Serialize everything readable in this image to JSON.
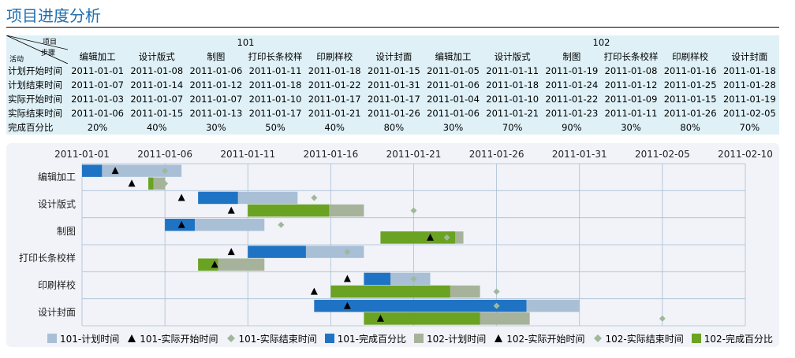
{
  "title": "项目进度分析",
  "table": {
    "corner": {
      "top": "项目",
      "mid": "步骤",
      "bottom": "活动"
    },
    "groups": [
      "101",
      "102"
    ],
    "steps": [
      "编辑加工",
      "设计版式",
      "制图",
      "打印长条校样",
      "印刷样校",
      "设计封面"
    ],
    "rows": [
      {
        "label": "计划开始时间",
        "values": [
          "2011-01-01",
          "2011-01-08",
          "2011-01-06",
          "2011-01-11",
          "2011-01-18",
          "2011-01-15",
          "2011-01-05",
          "2011-01-11",
          "2011-01-19",
          "2011-01-08",
          "2011-01-16",
          "2011-01-18"
        ]
      },
      {
        "label": "计划结束时间",
        "values": [
          "2011-01-07",
          "2011-01-14",
          "2011-01-12",
          "2011-01-18",
          "2011-01-22",
          "2011-01-31",
          "2011-01-06",
          "2011-01-18",
          "2011-01-24",
          "2011-01-12",
          "2011-01-25",
          "2011-01-28"
        ]
      },
      {
        "label": "实际开始时间",
        "values": [
          "2011-01-03",
          "2011-01-07",
          "2011-01-07",
          "2011-01-10",
          "2011-01-17",
          "2011-01-17",
          "2011-01-04",
          "2011-01-10",
          "2011-01-22",
          "2011-01-09",
          "2011-01-15",
          "2011-01-19"
        ]
      },
      {
        "label": "实际结束时间",
        "values": [
          "2011-01-06",
          "2011-01-15",
          "2011-01-13",
          "2011-01-17",
          "2011-01-21",
          "2011-01-26",
          "2011-01-06",
          "2011-01-21",
          "2011-01-23",
          "2011-01-11",
          "2011-01-26",
          "2011-02-05"
        ]
      },
      {
        "label": "完成百分比",
        "values": [
          "20%",
          "40%",
          "30%",
          "50%",
          "40%",
          "80%",
          "30%",
          "70%",
          "90%",
          "30%",
          "80%",
          "70%"
        ]
      }
    ]
  },
  "chart_data": {
    "type": "gantt",
    "x_ticks": [
      "2011-01-01",
      "2011-01-06",
      "2011-01-11",
      "2011-01-16",
      "2011-01-21",
      "2011-01-26",
      "2011-01-31",
      "2011-02-05",
      "2011-02-10"
    ],
    "xlim": [
      "2011-01-01",
      "2011-02-10"
    ],
    "categories": [
      "编辑加工",
      "设计版式",
      "制图",
      "打印长条校样",
      "印刷样校",
      "设计封面"
    ],
    "grid": true,
    "legend_position": "bottom",
    "projects": [
      {
        "name": "101",
        "tasks": [
          {
            "plan_start": "2011-01-01",
            "plan_end": "2011-01-07",
            "actual_start": "2011-01-03",
            "actual_end": "2011-01-06",
            "complete": 0.2
          },
          {
            "plan_start": "2011-01-08",
            "plan_end": "2011-01-14",
            "actual_start": "2011-01-07",
            "actual_end": "2011-01-15",
            "complete": 0.4
          },
          {
            "plan_start": "2011-01-06",
            "plan_end": "2011-01-12",
            "actual_start": "2011-01-07",
            "actual_end": "2011-01-13",
            "complete": 0.3
          },
          {
            "plan_start": "2011-01-11",
            "plan_end": "2011-01-18",
            "actual_start": "2011-01-10",
            "actual_end": "2011-01-17",
            "complete": 0.5
          },
          {
            "plan_start": "2011-01-18",
            "plan_end": "2011-01-22",
            "actual_start": "2011-01-17",
            "actual_end": "2011-01-21",
            "complete": 0.4
          },
          {
            "plan_start": "2011-01-15",
            "plan_end": "2011-01-31",
            "actual_start": "2011-01-17",
            "actual_end": "2011-01-26",
            "complete": 0.8
          }
        ]
      },
      {
        "name": "102",
        "tasks": [
          {
            "plan_start": "2011-01-05",
            "plan_end": "2011-01-06",
            "actual_start": "2011-01-04",
            "actual_end": "2011-01-06",
            "complete": 0.3
          },
          {
            "plan_start": "2011-01-11",
            "plan_end": "2011-01-18",
            "actual_start": "2011-01-10",
            "actual_end": "2011-01-21",
            "complete": 0.7
          },
          {
            "plan_start": "2011-01-19",
            "plan_end": "2011-01-24",
            "actual_start": "2011-01-22",
            "actual_end": "2011-01-23",
            "complete": 0.9
          },
          {
            "plan_start": "2011-01-08",
            "plan_end": "2011-01-12",
            "actual_start": "2011-01-09",
            "actual_end": "2011-01-11",
            "complete": 0.3
          },
          {
            "plan_start": "2011-01-16",
            "plan_end": "2011-01-25",
            "actual_start": "2011-01-15",
            "actual_end": "2011-01-26",
            "complete": 0.8
          },
          {
            "plan_start": "2011-01-18",
            "plan_end": "2011-01-28",
            "actual_start": "2011-01-19",
            "actual_end": "2011-02-05",
            "complete": 0.7
          }
        ]
      }
    ],
    "legend": [
      {
        "label": "101-计划时间",
        "marker": "square",
        "color": "#a9bfd6"
      },
      {
        "label": "101-实际开始时间",
        "marker": "triangle",
        "color": "#000000"
      },
      {
        "label": "101-实际结束时间",
        "marker": "diamond",
        "color": "#9fb89a"
      },
      {
        "label": "101-完成百分比",
        "marker": "square",
        "color": "#1f73c4"
      },
      {
        "label": "102-计划时间",
        "marker": "square",
        "color": "#a6b39a"
      },
      {
        "label": "102-实际开始时间",
        "marker": "triangle",
        "color": "#000000"
      },
      {
        "label": "102-实际结束时间",
        "marker": "diamond",
        "color": "#9fb89a"
      },
      {
        "label": "102-完成百分比",
        "marker": "square",
        "color": "#6aa321"
      }
    ],
    "colors": {
      "p101_plan": "#a9bfd6",
      "p101_done": "#1f73c4",
      "p102_plan": "#a6b39a",
      "p102_done": "#6aa321",
      "start_marker": "#000000",
      "end_marker": "#9fb89a",
      "grid": "#a8bed4"
    }
  }
}
